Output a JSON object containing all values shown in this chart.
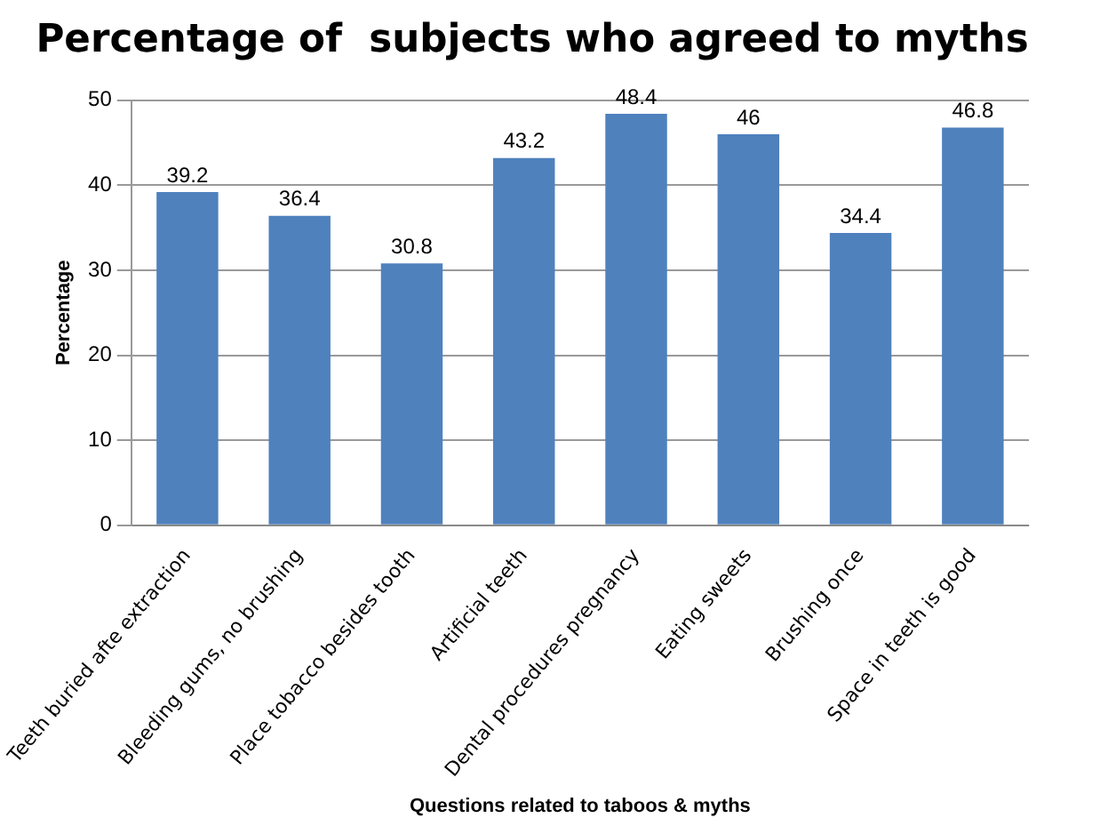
{
  "chart_data": {
    "type": "bar",
    "title": "Percentage of  subjects who agreed to myths",
    "xlabel": "Questions related to taboos & myths",
    "ylabel": "Percentage",
    "categories": [
      "Teeth buried afte extraction",
      "Bleeding gums, no brushing",
      "Place tobacco besides tooth",
      "Artificial teeth",
      "Dental procedures pregnancy",
      "Eating sweets",
      "Brushing once",
      "Space in teeth is good"
    ],
    "values": [
      39.2,
      36.4,
      30.8,
      43.2,
      48.4,
      46,
      34.4,
      46.8
    ],
    "color": "#4f81bd",
    "ylim": [
      0,
      50
    ],
    "yticks": [
      0,
      10,
      20,
      30,
      40,
      50
    ],
    "grid": "y",
    "data_labels": true,
    "legend": false
  }
}
